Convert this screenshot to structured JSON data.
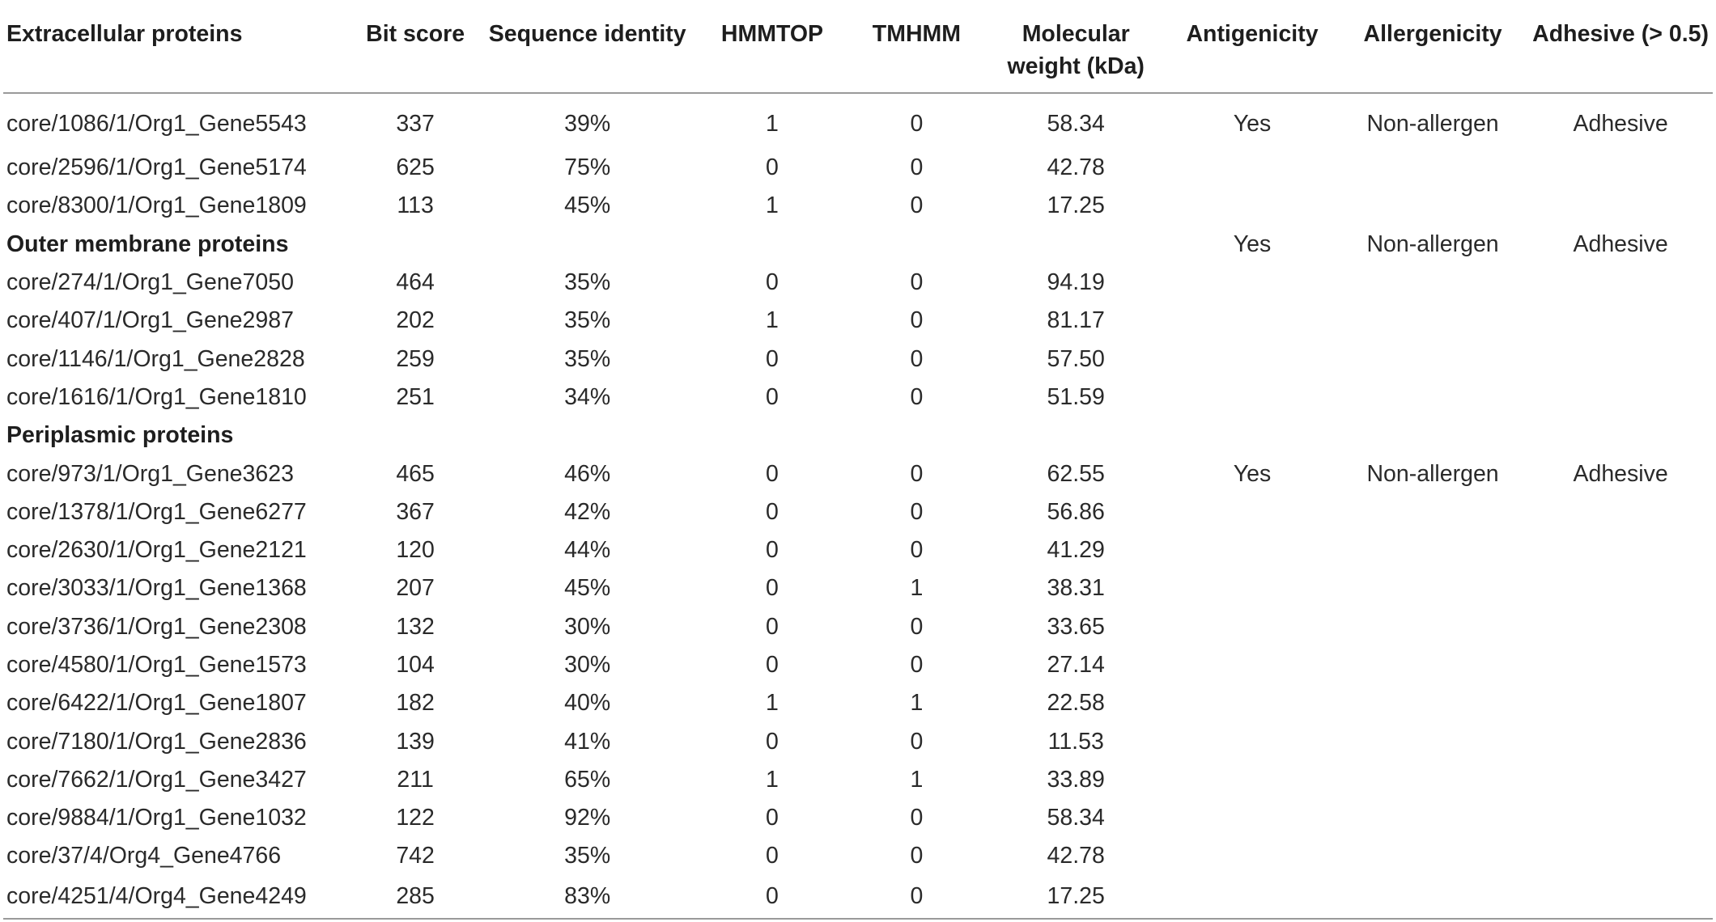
{
  "headers": [
    "Extracellular proteins",
    "Bit score",
    "Sequence identity",
    "HMMTOP",
    "TMHMM",
    "Molecular weight (kDa)",
    "Antigenicity",
    "Allergenicity",
    "Adhesive (> 0.5)"
  ],
  "headers_split": {
    "mw_line1": "Molecular",
    "mw_line2": "weight (kDa)"
  },
  "extracellular": {
    "rows": [
      {
        "name": "core/1086/1/Org1_Gene5543",
        "bit": "337",
        "ident": "39%",
        "hmmtop": "1",
        "tmhmm": "0",
        "mw": "58.34",
        "antigen": "Yes",
        "allergen": "Non-allergen",
        "adhesive": "Adhesive"
      },
      {
        "name": "core/2596/1/Org1_Gene5174",
        "bit": "625",
        "ident": "75%",
        "hmmtop": "0",
        "tmhmm": "0",
        "mw": "42.78"
      },
      {
        "name": "core/8300/1/Org1_Gene1809",
        "bit": "113",
        "ident": "45%",
        "hmmtop": "1",
        "tmhmm": "0",
        "mw": "17.25"
      }
    ]
  },
  "outer_membrane": {
    "title": "Outer membrane proteins",
    "antigen": "Yes",
    "allergen": "Non-allergen",
    "adhesive": "Adhesive",
    "rows": [
      {
        "name": "core/274/1/Org1_Gene7050",
        "bit": "464",
        "ident": "35%",
        "hmmtop": "0",
        "tmhmm": "0",
        "mw": "94.19"
      },
      {
        "name": "core/407/1/Org1_Gene2987",
        "bit": "202",
        "ident": "35%",
        "hmmtop": "1",
        "tmhmm": "0",
        "mw": "81.17"
      },
      {
        "name": "core/1146/1/Org1_Gene2828",
        "bit": "259",
        "ident": "35%",
        "hmmtop": "0",
        "tmhmm": "0",
        "mw": "57.50"
      },
      {
        "name": "core/1616/1/Org1_Gene1810",
        "bit": "251",
        "ident": "34%",
        "hmmtop": "0",
        "tmhmm": "0",
        "mw": "51.59"
      }
    ]
  },
  "periplasmic": {
    "title": "Periplasmic proteins",
    "rows": [
      {
        "name": "core/973/1/Org1_Gene3623",
        "bit": "465",
        "ident": "46%",
        "hmmtop": "0",
        "tmhmm": "0",
        "mw": "62.55",
        "antigen": "Yes",
        "allergen": "Non-allergen",
        "adhesive": "Adhesive"
      },
      {
        "name": "core/1378/1/Org1_Gene6277",
        "bit": "367",
        "ident": "42%",
        "hmmtop": "0",
        "tmhmm": "0",
        "mw": "56.86"
      },
      {
        "name": "core/2630/1/Org1_Gene2121",
        "bit": "120",
        "ident": "44%",
        "hmmtop": "0",
        "tmhmm": "0",
        "mw": "41.29"
      },
      {
        "name": "core/3033/1/Org1_Gene1368",
        "bit": "207",
        "ident": "45%",
        "hmmtop": "0",
        "tmhmm": "1",
        "mw": "38.31"
      },
      {
        "name": "core/3736/1/Org1_Gene2308",
        "bit": "132",
        "ident": "30%",
        "hmmtop": "0",
        "tmhmm": "0",
        "mw": "33.65"
      },
      {
        "name": "core/4580/1/Org1_Gene1573",
        "bit": "104",
        "ident": "30%",
        "hmmtop": "0",
        "tmhmm": "0",
        "mw": "27.14"
      },
      {
        "name": "core/6422/1/Org1_Gene1807",
        "bit": "182",
        "ident": "40%",
        "hmmtop": "1",
        "tmhmm": "1",
        "mw": "22.58"
      },
      {
        "name": "core/7180/1/Org1_Gene2836",
        "bit": "139",
        "ident": "41%",
        "hmmtop": "0",
        "tmhmm": "0",
        "mw": "11.53"
      },
      {
        "name": "core/7662/1/Org1_Gene3427",
        "bit": "211",
        "ident": "65%",
        "hmmtop": "1",
        "tmhmm": "1",
        "mw": "33.89"
      },
      {
        "name": "core/9884/1/Org1_Gene1032",
        "bit": "122",
        "ident": "92%",
        "hmmtop": "0",
        "tmhmm": "0",
        "mw": "58.34"
      },
      {
        "name": "core/37/4/Org4_Gene4766",
        "bit": "742",
        "ident": "35%",
        "hmmtop": "0",
        "tmhmm": "0",
        "mw": "42.78"
      },
      {
        "name": "core/4251/4/Org4_Gene4249",
        "bit": "285",
        "ident": "83%",
        "hmmtop": "0",
        "tmhmm": "0",
        "mw": "17.25"
      }
    ]
  }
}
